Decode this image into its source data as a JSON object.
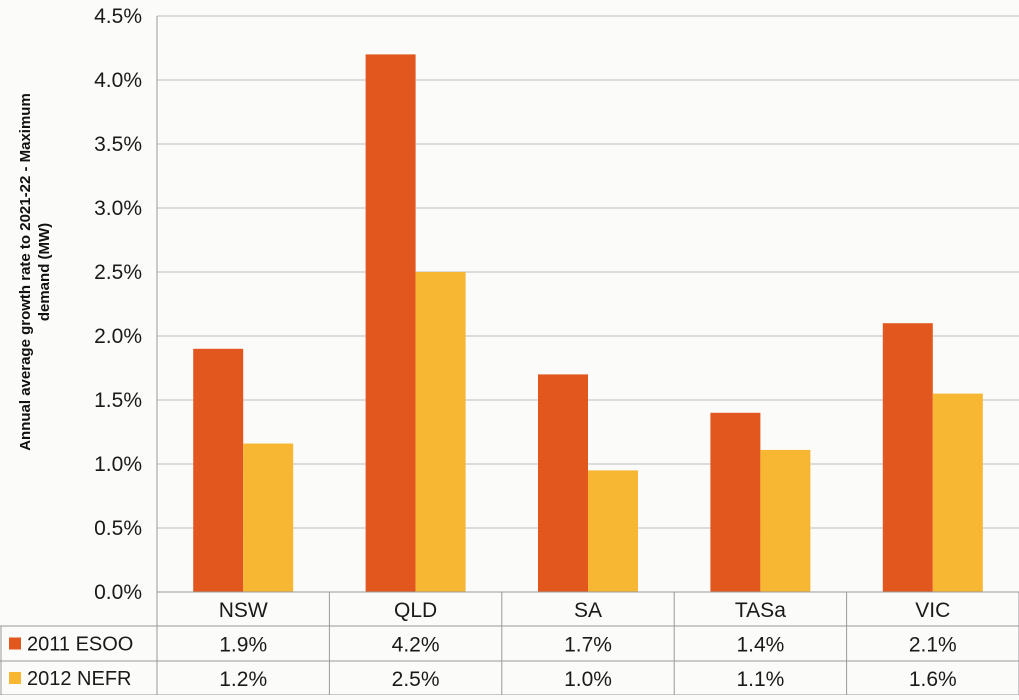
{
  "chart_data": {
    "type": "bar",
    "ylabel": "Annual average growth rate to 2021-22 - Maximum demand (MW)",
    "ylim": [
      0,
      0.045
    ],
    "yticks": [
      "0.0%",
      "0.5%",
      "1.0%",
      "1.5%",
      "2.0%",
      "2.5%",
      "3.0%",
      "3.5%",
      "4.0%",
      "4.5%"
    ],
    "grid": true,
    "legend": "data-table",
    "categories": [
      "NSW",
      "QLD",
      "SA",
      "TASa",
      "VIC"
    ],
    "series": [
      {
        "name": "2011 ESOO",
        "color": "#e2571e",
        "values": [
          0.019,
          0.042,
          0.017,
          0.014,
          0.021
        ],
        "labels": [
          "1.9%",
          "4.2%",
          "1.7%",
          "1.4%",
          "2.1%"
        ]
      },
      {
        "name": "2012 NEFR",
        "color": "#f7b733",
        "values": [
          0.0116,
          0.025,
          0.0095,
          0.0111,
          0.0155
        ],
        "labels": [
          "1.2%",
          "2.5%",
          "1.0%",
          "1.1%",
          "1.6%"
        ]
      }
    ]
  }
}
